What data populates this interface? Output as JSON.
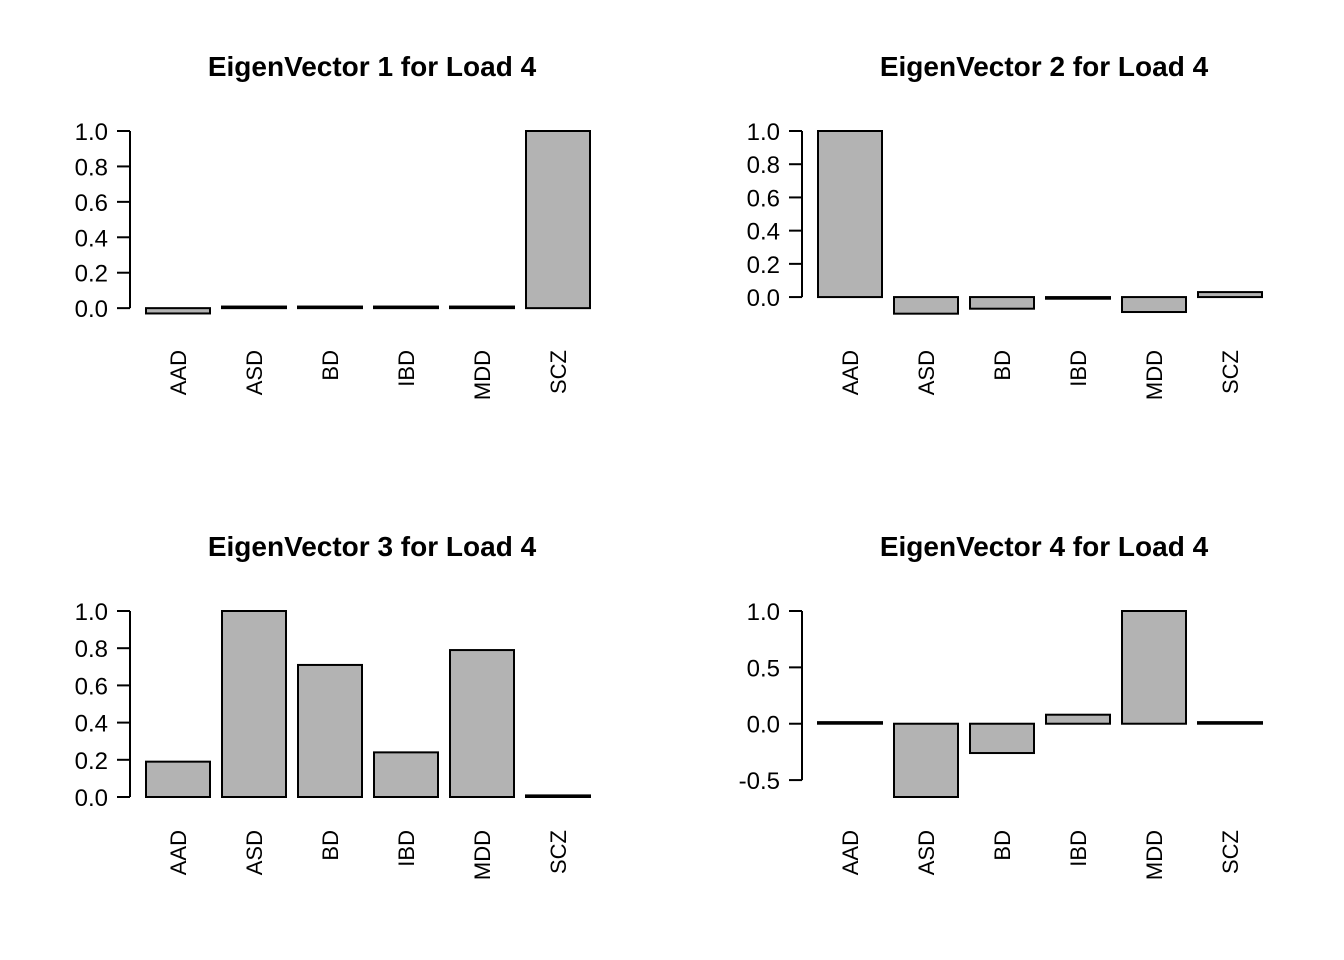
{
  "figure": {
    "background": "#ffffff",
    "bar_fill": "#b3b3b3",
    "bar_stroke": "#000000",
    "axis_color": "#000000",
    "text_color": "#000000"
  },
  "chart_data": [
    {
      "type": "bar",
      "title": "EigenVector 1 for Load 4",
      "categories": [
        "AAD",
        "ASD",
        "BD",
        "IBD",
        "MDD",
        "SCZ"
      ],
      "values": [
        -0.03,
        0.0,
        0.0,
        0.0,
        0.0,
        1.0
      ],
      "yticks": [
        0.0,
        0.2,
        0.4,
        0.6,
        0.8,
        1.0
      ],
      "ytick_labels": [
        "0.0",
        "0.2",
        "0.4",
        "0.6",
        "0.8",
        "1.0"
      ],
      "ylim": [
        -0.05,
        1.0
      ],
      "xlabel": "",
      "ylabel": "",
      "grid": false,
      "legend": null
    },
    {
      "type": "bar",
      "title": "EigenVector 2 for Load 4",
      "categories": [
        "AAD",
        "ASD",
        "BD",
        "IBD",
        "MDD",
        "SCZ"
      ],
      "values": [
        1.0,
        -0.1,
        -0.07,
        -0.01,
        -0.09,
        0.03
      ],
      "yticks": [
        0.0,
        0.2,
        0.4,
        0.6,
        0.8,
        1.0
      ],
      "ytick_labels": [
        "0.0",
        "0.2",
        "0.4",
        "0.6",
        "0.8",
        "1.0"
      ],
      "ylim": [
        -0.12,
        1.0
      ],
      "xlabel": "",
      "ylabel": "",
      "grid": false,
      "legend": null
    },
    {
      "type": "bar",
      "title": "EigenVector 3 for Load 4",
      "categories": [
        "AAD",
        "ASD",
        "BD",
        "IBD",
        "MDD",
        "SCZ"
      ],
      "values": [
        0.19,
        1.0,
        0.71,
        0.24,
        0.79,
        0.0
      ],
      "yticks": [
        0.0,
        0.2,
        0.4,
        0.6,
        0.8,
        1.0
      ],
      "ytick_labels": [
        "0.0",
        "0.2",
        "0.4",
        "0.6",
        "0.8",
        "1.0"
      ],
      "ylim": [
        0.0,
        1.0
      ],
      "xlabel": "",
      "ylabel": "",
      "grid": false,
      "legend": null
    },
    {
      "type": "bar",
      "title": "EigenVector 4 for Load 4",
      "categories": [
        "AAD",
        "ASD",
        "BD",
        "IBD",
        "MDD",
        "SCZ"
      ],
      "values": [
        0.0,
        -0.65,
        -0.26,
        0.08,
        1.0,
        0.0
      ],
      "yticks": [
        -0.5,
        0.0,
        0.5,
        1.0
      ],
      "ytick_labels": [
        "-0.5",
        "0.0",
        "0.5",
        "1.0"
      ],
      "ylim": [
        -0.65,
        1.0
      ],
      "xlabel": "",
      "ylabel": "",
      "grid": false,
      "legend": null
    }
  ]
}
